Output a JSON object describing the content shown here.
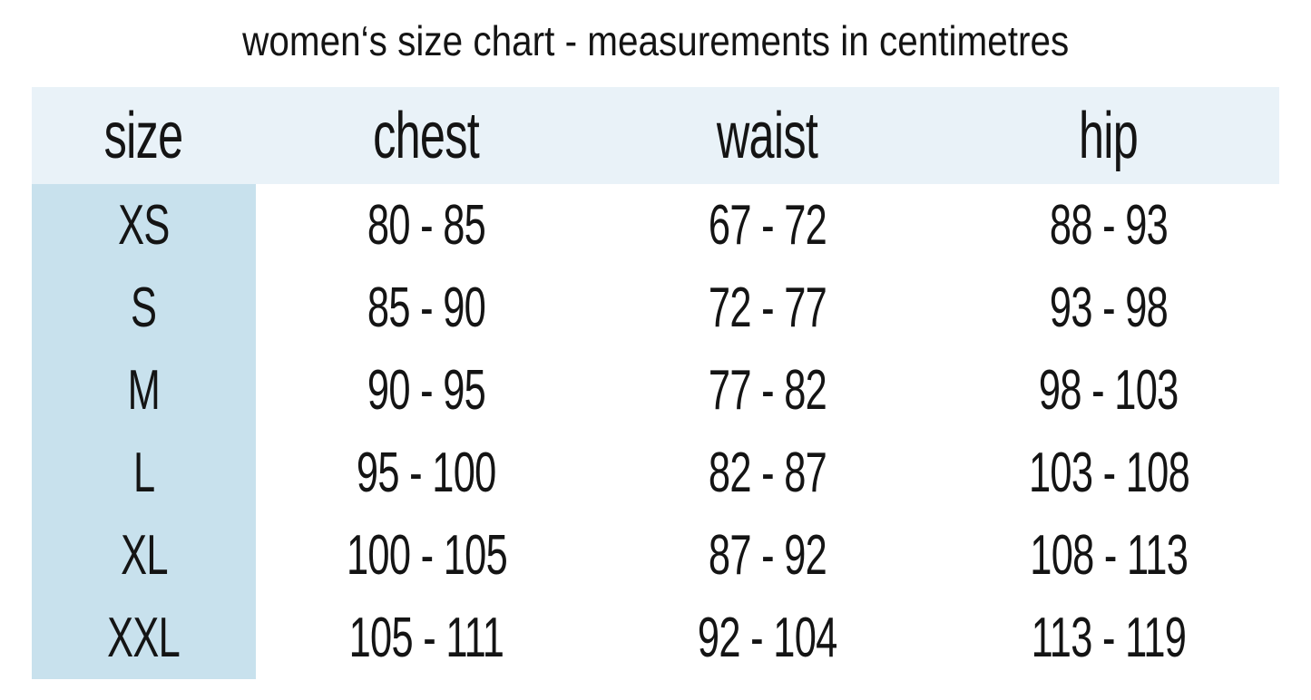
{
  "title": "women‘s size chart - measurements in centimetres",
  "colors": {
    "header_row_bg": "#e9f2f8",
    "size_column_bg": "#c8e1ed",
    "text": "#141414",
    "page_bg": "#ffffff"
  },
  "table": {
    "headers": [
      "size",
      "chest",
      "waist",
      "hip"
    ],
    "rows": [
      [
        "XS",
        "80 - 85",
        "67 - 72",
        "88 - 93"
      ],
      [
        "S",
        "85 - 90",
        "72 - 77",
        "93 - 98"
      ],
      [
        "M",
        "90 - 95",
        "77 - 82",
        "98 - 103"
      ],
      [
        "L",
        "95 - 100",
        "82 - 87",
        "103 - 108"
      ],
      [
        "XL",
        "100 - 105",
        "87 - 92",
        "108 - 113"
      ],
      [
        "XXL",
        "105 - 111",
        "92 - 104",
        "113 - 119"
      ]
    ]
  },
  "chart_data": {
    "type": "table",
    "title": "women‘s size chart - measurements in centimetres",
    "unit": "cm",
    "columns": [
      "size",
      "chest",
      "waist",
      "hip"
    ],
    "rows": [
      {
        "size": "XS",
        "chest": "80 - 85",
        "waist": "67 - 72",
        "hip": "88 - 93"
      },
      {
        "size": "S",
        "chest": "85 - 90",
        "waist": "72 - 77",
        "hip": "93 - 98"
      },
      {
        "size": "M",
        "chest": "90 - 95",
        "waist": "77 - 82",
        "hip": "98 - 103"
      },
      {
        "size": "L",
        "chest": "95 - 100",
        "waist": "82 - 87",
        "hip": "103 - 108"
      },
      {
        "size": "XL",
        "chest": "100 - 105",
        "waist": "87 - 92",
        "hip": "108 - 113"
      },
      {
        "size": "XXL",
        "chest": "105 - 111",
        "waist": "92 - 104",
        "hip": "113 - 119"
      }
    ]
  }
}
